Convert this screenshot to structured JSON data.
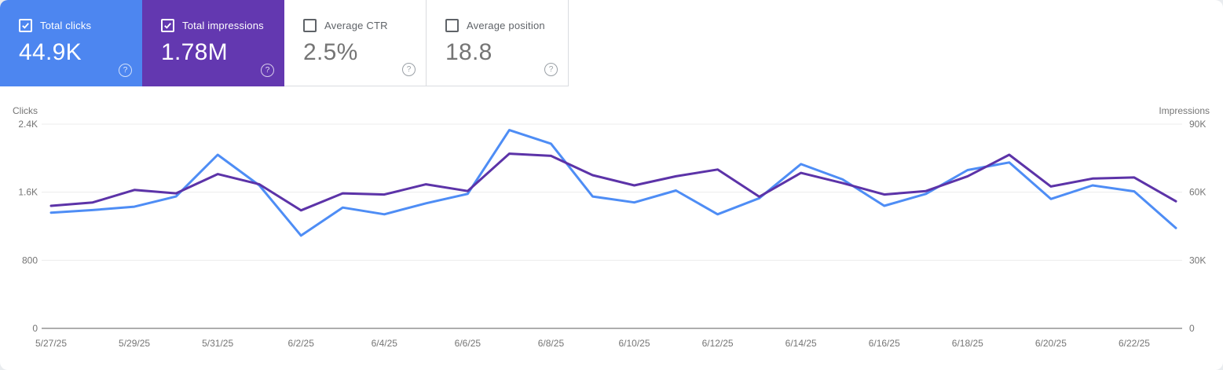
{
  "help_glyph": "?",
  "cards": [
    {
      "label": "Total clicks",
      "value": "44.9K",
      "checked": true,
      "color": "#4d86f0"
    },
    {
      "label": "Total impressions",
      "value": "1.78M",
      "checked": true,
      "color": "#6338b0"
    },
    {
      "label": "Average CTR",
      "value": "2.5%",
      "checked": false,
      "color": ""
    },
    {
      "label": "Average position",
      "value": "18.8",
      "checked": false,
      "color": ""
    }
  ],
  "chart_data": {
    "type": "line",
    "x": [
      "5/27/25",
      "5/28/25",
      "5/29/25",
      "5/30/25",
      "5/31/25",
      "6/1/25",
      "6/2/25",
      "6/3/25",
      "6/4/25",
      "6/5/25",
      "6/6/25",
      "6/7/25",
      "6/8/25",
      "6/9/25",
      "6/10/25",
      "6/11/25",
      "6/12/25",
      "6/13/25",
      "6/14/25",
      "6/15/25",
      "6/16/25",
      "6/17/25",
      "6/18/25",
      "6/19/25",
      "6/20/25",
      "6/21/25",
      "6/22/25",
      "6/23/25"
    ],
    "x_tick_every": 2,
    "grid": true,
    "left_axis": {
      "title": "Clicks",
      "max": 2400,
      "ticks": [
        {
          "value": 2400,
          "label": "2.4K"
        },
        {
          "value": 1600,
          "label": "1.6K"
        },
        {
          "value": 800,
          "label": "800"
        },
        {
          "value": 0,
          "label": "0"
        }
      ]
    },
    "right_axis": {
      "title": "Impressions",
      "max": 90000,
      "ticks": [
        {
          "value": 90000,
          "label": "90K"
        },
        {
          "value": 60000,
          "label": "60K"
        },
        {
          "value": 30000,
          "label": "30K"
        },
        {
          "value": 0,
          "label": "0"
        }
      ]
    },
    "series": [
      {
        "name": "Clicks",
        "axis": "left",
        "color": "#4e8df5",
        "values": [
          1360,
          1390,
          1430,
          1550,
          2040,
          1680,
          1090,
          1420,
          1340,
          1470,
          1580,
          2330,
          2170,
          1550,
          1480,
          1620,
          1340,
          1530,
          1930,
          1750,
          1440,
          1580,
          1860,
          1950,
          1520,
          1680,
          1610,
          1180
        ]
      },
      {
        "name": "Impressions",
        "axis": "right",
        "color": "#5c33a8",
        "values": [
          54000,
          55500,
          61000,
          59500,
          68000,
          63500,
          52000,
          59500,
          59000,
          63500,
          60500,
          77000,
          76000,
          67500,
          63000,
          67000,
          70000,
          58000,
          68500,
          64000,
          59000,
          60500,
          67000,
          76500,
          62500,
          66000,
          66500,
          56000
        ]
      }
    ]
  }
}
